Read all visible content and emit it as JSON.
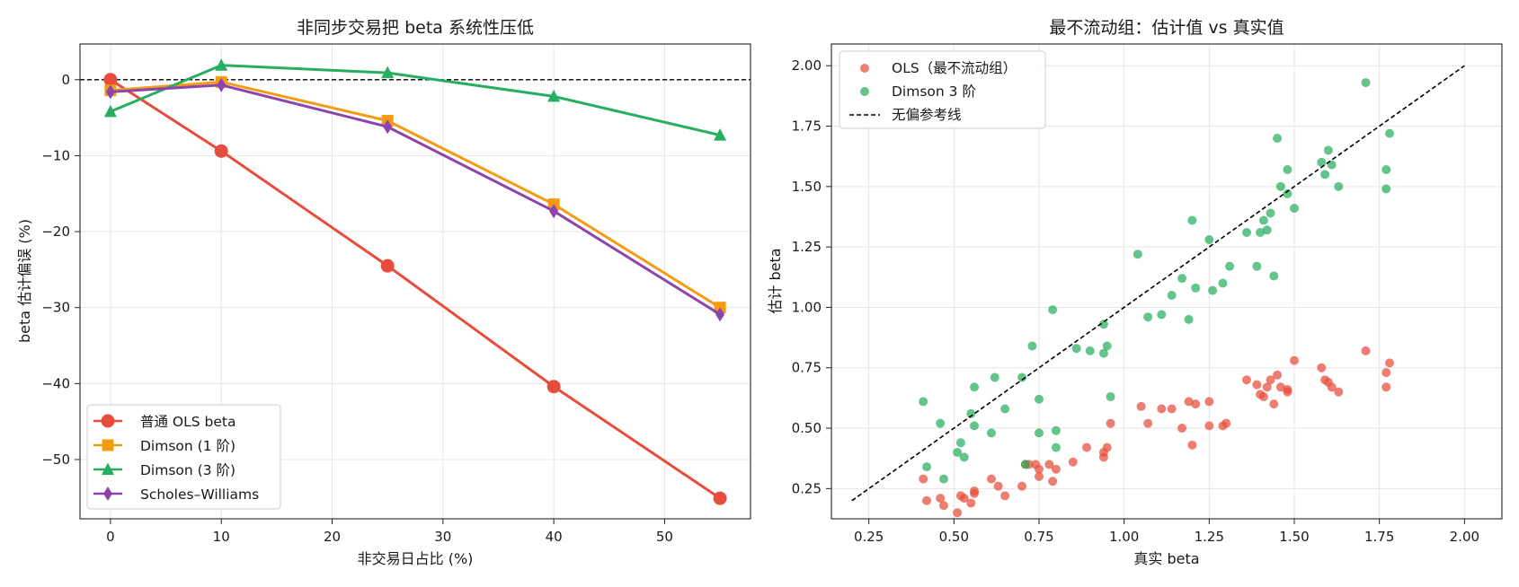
{
  "colors": {
    "ols": "#e74c3c",
    "dimson1": "#f39c12",
    "dimson3": "#27ae60",
    "sw": "#8e44ad",
    "ref": "#000000"
  },
  "chart_data": [
    {
      "type": "line",
      "title": "非同步交易把 beta 系统性压低",
      "xlabel": "非交易日占比 (%)",
      "ylabel": "beta 估计偏误 (%)",
      "xlim": [
        -2.75,
        57.75
      ],
      "ylim": [
        -57.8,
        4.7
      ],
      "xticks": [
        "0",
        "10",
        "20",
        "30",
        "40",
        "50"
      ],
      "yticks": [
        "0",
        "−10",
        "−20",
        "−30",
        "−40",
        "−50"
      ],
      "grid": true,
      "legend_position": "lower-left",
      "zero_line": true,
      "x": [
        0,
        10,
        25,
        40,
        55
      ],
      "series": [
        {
          "name": "普通 OLS beta",
          "marker": "circle",
          "values": [
            0.0,
            -9.4,
            -24.5,
            -40.4,
            -55.1
          ]
        },
        {
          "name": "Dimson (1 阶)",
          "marker": "square",
          "values": [
            -1.4,
            -0.3,
            -5.4,
            -16.4,
            -30.0
          ]
        },
        {
          "name": "Dimson (3 阶)",
          "marker": "triangle",
          "values": [
            -4.2,
            1.9,
            0.9,
            -2.2,
            -7.3
          ]
        },
        {
          "name": "Scholes–Williams",
          "marker": "diamond",
          "values": [
            -1.6,
            -0.7,
            -6.2,
            -17.3,
            -30.9
          ]
        }
      ]
    },
    {
      "type": "scatter",
      "title": "最不流动组：估计值 vs 真实值",
      "xlabel": "真实 beta",
      "ylabel": "估计 beta",
      "xlim": [
        0.14,
        2.11
      ],
      "ylim": [
        0.125,
        2.09
      ],
      "xticks": [
        "0.25",
        "0.50",
        "0.75",
        "1.00",
        "1.25",
        "1.50",
        "1.75",
        "2.00"
      ],
      "yticks": [
        "0.25",
        "0.50",
        "0.75",
        "1.00",
        "1.25",
        "1.50",
        "1.75",
        "2.00"
      ],
      "grid": true,
      "legend_position": "upper-left",
      "reference_line": {
        "name": "无偏参考线",
        "x": [
          0.2,
          2.0
        ],
        "y": [
          0.2,
          2.0
        ]
      },
      "series": [
        {
          "name": "OLS（最不流动组）",
          "points": [
            [
              0.41,
              0.29
            ],
            [
              0.42,
              0.2
            ],
            [
              0.46,
              0.21
            ],
            [
              0.47,
              0.18
            ],
            [
              0.51,
              0.15
            ],
            [
              0.52,
              0.22
            ],
            [
              0.53,
              0.21
            ],
            [
              0.55,
              0.19
            ],
            [
              0.56,
              0.23
            ],
            [
              0.56,
              0.24
            ],
            [
              0.61,
              0.29
            ],
            [
              0.63,
              0.26
            ],
            [
              0.65,
              0.22
            ],
            [
              0.7,
              0.26
            ],
            [
              0.71,
              0.35
            ],
            [
              0.72,
              0.35
            ],
            [
              0.74,
              0.35
            ],
            [
              0.75,
              0.33
            ],
            [
              0.75,
              0.3
            ],
            [
              0.78,
              0.35
            ],
            [
              0.79,
              0.28
            ],
            [
              0.8,
              0.33
            ],
            [
              0.85,
              0.36
            ],
            [
              0.89,
              0.42
            ],
            [
              0.94,
              0.38
            ],
            [
              0.94,
              0.4
            ],
            [
              0.95,
              0.42
            ],
            [
              0.96,
              0.52
            ],
            [
              1.05,
              0.59
            ],
            [
              1.07,
              0.52
            ],
            [
              1.11,
              0.58
            ],
            [
              1.14,
              0.58
            ],
            [
              1.17,
              0.5
            ],
            [
              1.19,
              0.61
            ],
            [
              1.2,
              0.43
            ],
            [
              1.21,
              0.6
            ],
            [
              1.25,
              0.61
            ],
            [
              1.25,
              0.51
            ],
            [
              1.29,
              0.51
            ],
            [
              1.3,
              0.52
            ],
            [
              1.36,
              0.7
            ],
            [
              1.39,
              0.68
            ],
            [
              1.4,
              0.64
            ],
            [
              1.41,
              0.63
            ],
            [
              1.42,
              0.67
            ],
            [
              1.43,
              0.7
            ],
            [
              1.44,
              0.6
            ],
            [
              1.45,
              0.72
            ],
            [
              1.46,
              0.67
            ],
            [
              1.48,
              0.65
            ],
            [
              1.48,
              0.66
            ],
            [
              1.5,
              0.78
            ],
            [
              1.58,
              0.75
            ],
            [
              1.59,
              0.7
            ],
            [
              1.6,
              0.69
            ],
            [
              1.61,
              0.67
            ],
            [
              1.63,
              0.65
            ],
            [
              1.71,
              0.82
            ],
            [
              1.77,
              0.73
            ],
            [
              1.77,
              0.67
            ],
            [
              1.78,
              0.77
            ]
          ]
        },
        {
          "name": "Dimson 3 阶",
          "points": [
            [
              0.41,
              0.61
            ],
            [
              0.42,
              0.34
            ],
            [
              0.46,
              0.52
            ],
            [
              0.47,
              0.29
            ],
            [
              0.51,
              0.4
            ],
            [
              0.52,
              0.44
            ],
            [
              0.53,
              0.38
            ],
            [
              0.55,
              0.56
            ],
            [
              0.56,
              0.67
            ],
            [
              0.56,
              0.51
            ],
            [
              0.61,
              0.48
            ],
            [
              0.62,
              0.71
            ],
            [
              0.65,
              0.58
            ],
            [
              0.7,
              0.71
            ],
            [
              0.71,
              0.35
            ],
            [
              0.73,
              0.84
            ],
            [
              0.75,
              0.62
            ],
            [
              0.75,
              0.48
            ],
            [
              0.79,
              0.99
            ],
            [
              0.8,
              0.49
            ],
            [
              0.8,
              0.42
            ],
            [
              0.86,
              0.83
            ],
            [
              0.9,
              0.82
            ],
            [
              0.94,
              0.81
            ],
            [
              0.94,
              0.93
            ],
            [
              0.95,
              0.84
            ],
            [
              0.96,
              0.63
            ],
            [
              1.04,
              1.22
            ],
            [
              1.07,
              0.96
            ],
            [
              1.11,
              0.97
            ],
            [
              1.14,
              1.05
            ],
            [
              1.17,
              1.12
            ],
            [
              1.19,
              0.95
            ],
            [
              1.2,
              1.36
            ],
            [
              1.21,
              1.08
            ],
            [
              1.25,
              1.28
            ],
            [
              1.26,
              1.07
            ],
            [
              1.29,
              1.1
            ],
            [
              1.31,
              1.17
            ],
            [
              1.36,
              1.31
            ],
            [
              1.39,
              1.17
            ],
            [
              1.4,
              1.31
            ],
            [
              1.41,
              1.36
            ],
            [
              1.42,
              1.32
            ],
            [
              1.43,
              1.39
            ],
            [
              1.44,
              1.13
            ],
            [
              1.45,
              1.7
            ],
            [
              1.46,
              1.5
            ],
            [
              1.48,
              1.47
            ],
            [
              1.48,
              1.57
            ],
            [
              1.5,
              1.41
            ],
            [
              1.58,
              1.6
            ],
            [
              1.59,
              1.55
            ],
            [
              1.6,
              1.65
            ],
            [
              1.61,
              1.59
            ],
            [
              1.63,
              1.5
            ],
            [
              1.71,
              1.93
            ],
            [
              1.77,
              1.57
            ],
            [
              1.77,
              1.49
            ],
            [
              1.78,
              1.72
            ]
          ]
        }
      ]
    }
  ]
}
